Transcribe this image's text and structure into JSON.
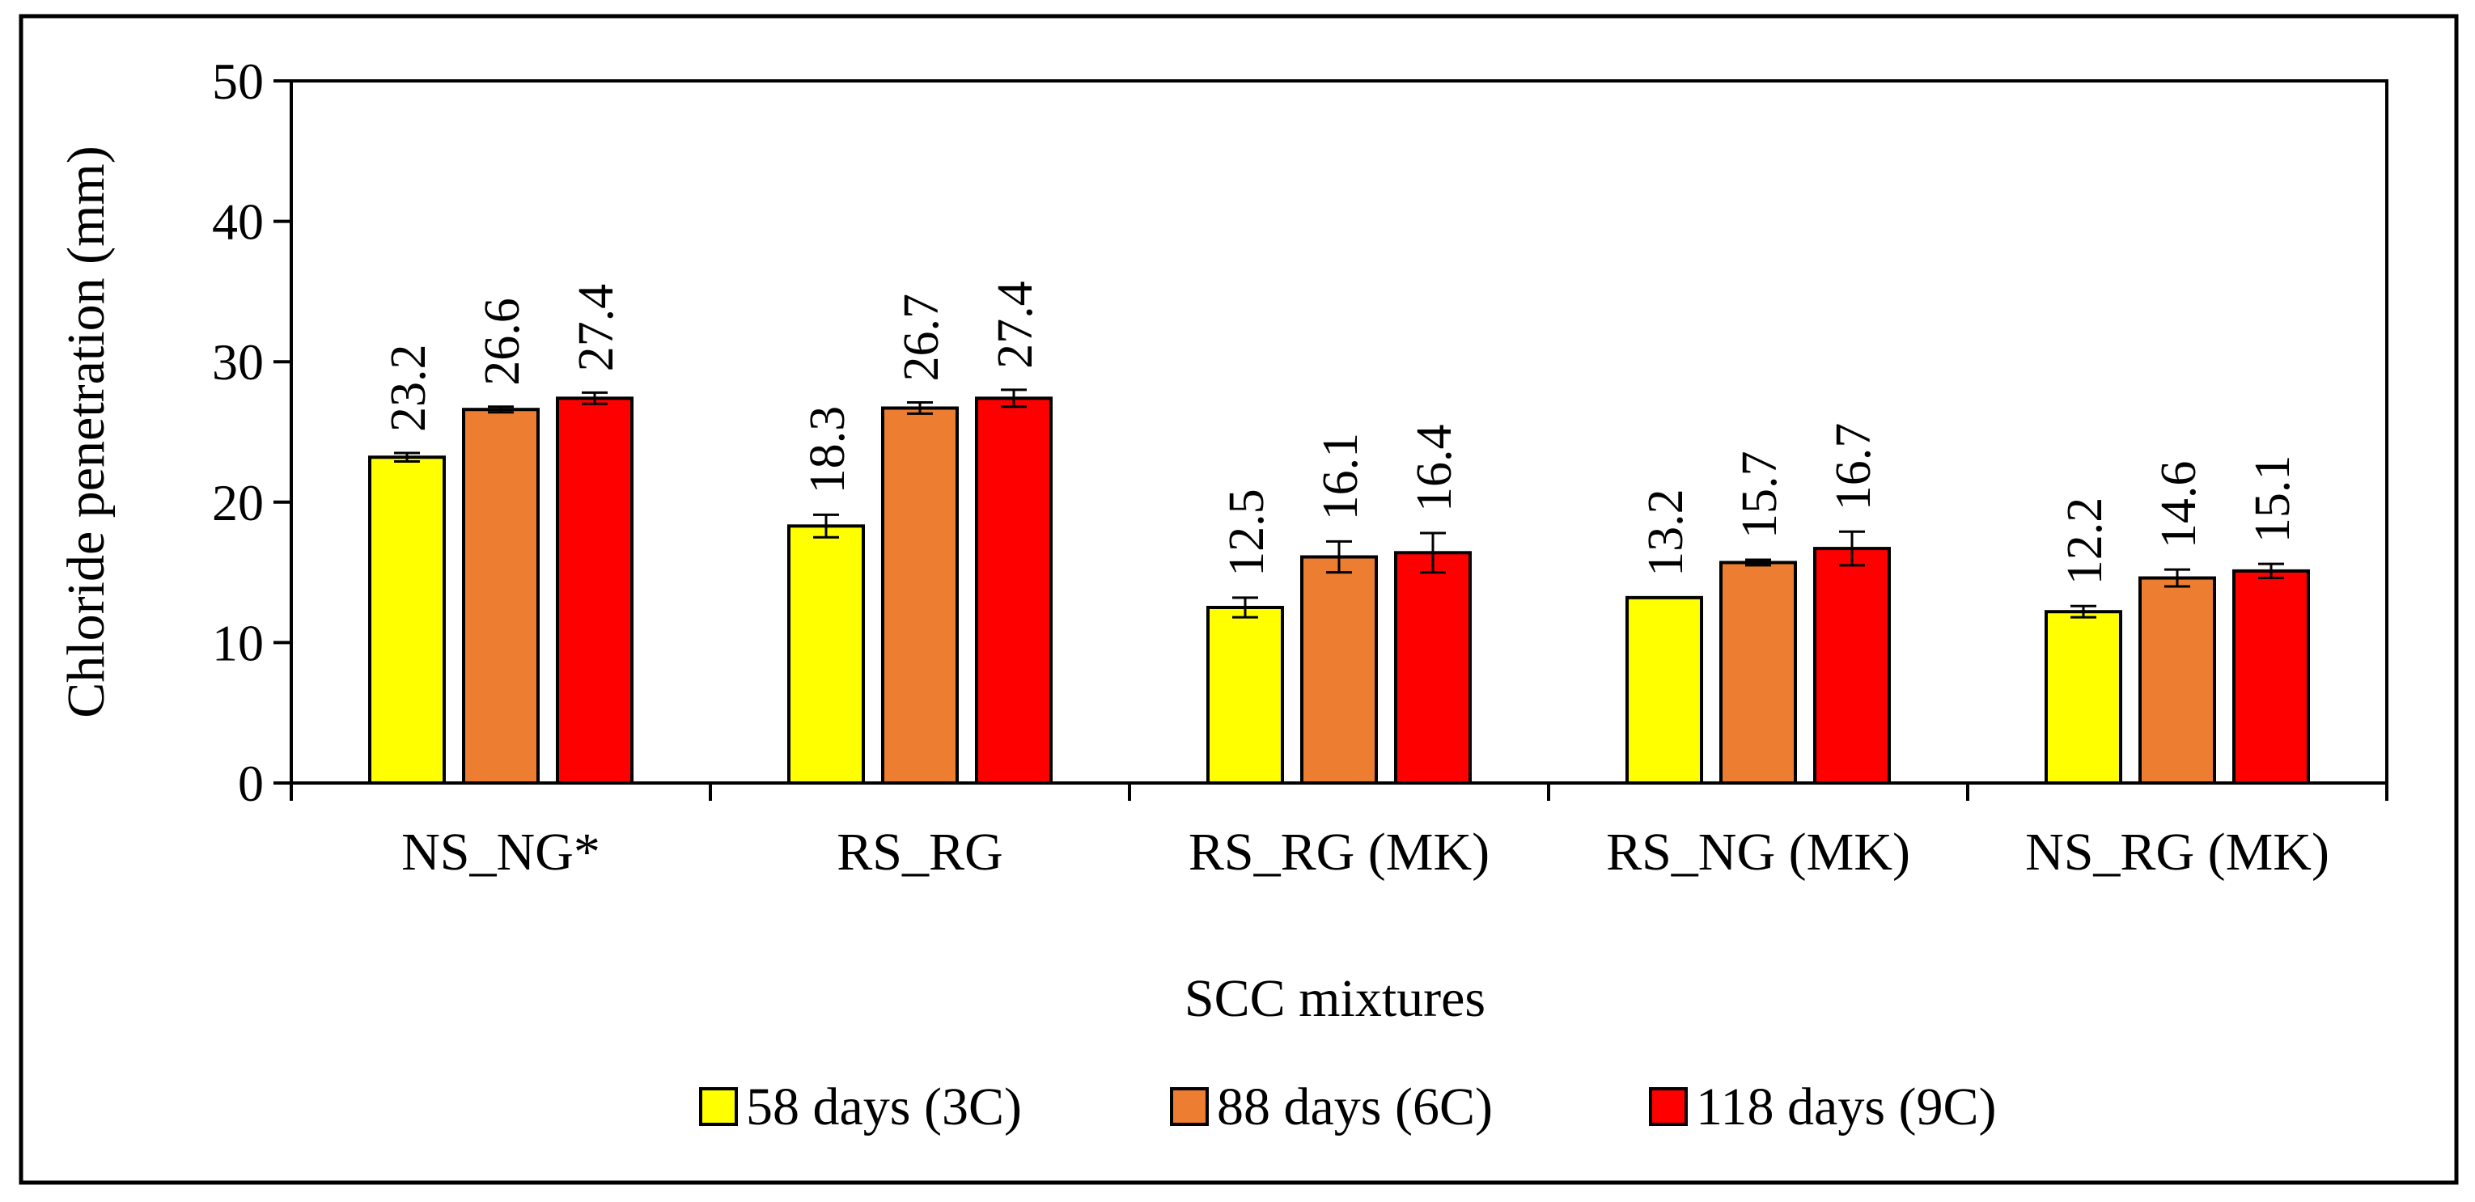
{
  "chart_data": {
    "type": "bar",
    "title": "",
    "xlabel": "SCC mixtures",
    "ylabel": "Chloride penetration (mm)",
    "ylim": [
      0,
      50
    ],
    "yticks": [
      "0",
      "10",
      "20",
      "30",
      "40",
      "50"
    ],
    "grid": false,
    "legend_position": "bottom",
    "categories": [
      "NS_NG*",
      "RS_RG",
      "RS_RG (MK)",
      "RS_NG (MK)",
      "NS_RG (MK)"
    ],
    "series": [
      {
        "name": "58 days (3C)",
        "color": "#FFFF00",
        "values": [
          23.2,
          18.3,
          12.5,
          13.2,
          12.2
        ],
        "labels": [
          "23.2",
          "18.3",
          "12.5",
          "13.2",
          "12.2"
        ],
        "errors": [
          0.3,
          0.8,
          0.7,
          0.0,
          0.4
        ]
      },
      {
        "name": "88 days (6C)",
        "color": "#ED7D31",
        "values": [
          26.6,
          26.7,
          16.1,
          15.7,
          14.6
        ],
        "labels": [
          "26.6",
          "26.7",
          "16.1",
          "15.7",
          "14.6"
        ],
        "errors": [
          0.2,
          0.4,
          1.1,
          0.2,
          0.6
        ]
      },
      {
        "name": "118 days (9C)",
        "color": "#FF0000",
        "values": [
          27.4,
          27.4,
          16.4,
          16.7,
          15.1
        ],
        "labels": [
          "27.4",
          "27.4",
          "16.4",
          "16.7",
          "15.1"
        ],
        "errors": [
          0.4,
          0.6,
          1.4,
          1.2,
          0.5
        ]
      }
    ]
  }
}
